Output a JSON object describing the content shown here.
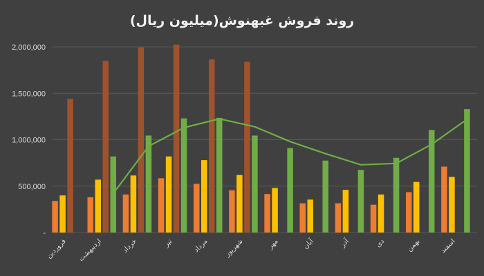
{
  "chart_data": {
    "type": "bar",
    "title": "روند فروش غبهنوش(میلیون ریال)",
    "categories": [
      "فروردین",
      "اردیبهشت",
      "خرداد",
      "تیر",
      "مرداد",
      "شهریور",
      "مهر",
      "آبان",
      "آذر",
      "دی",
      "بهمن",
      "اسفند"
    ],
    "series": [
      {
        "color": "#ed7d31",
        "values": [
          340000,
          380000,
          410000,
          585000,
          525000,
          455000,
          415000,
          315000,
          315000,
          300000,
          435000,
          710000
        ]
      },
      {
        "color": "#ffc000",
        "values": [
          400000,
          570000,
          615000,
          820000,
          780000,
          620000,
          480000,
          355000,
          460000,
          410000,
          545000,
          600000
        ]
      },
      {
        "color": "#a0522d",
        "values": [
          1440000,
          1850000,
          1995000,
          2025000,
          1865000,
          1840000,
          null,
          null,
          null,
          null,
          null,
          null
        ]
      },
      {
        "color": "#70ad47",
        "values": [
          null,
          820000,
          1045000,
          1230000,
          1235000,
          1045000,
          910000,
          775000,
          675000,
          805000,
          1105000,
          1330000
        ]
      }
    ],
    "trend_line": {
      "type": "line",
      "color": "#70ad47",
      "values": [
        null,
        420000,
        930000,
        1130000,
        1225000,
        1140000,
        980000,
        850000,
        730000,
        745000,
        950000,
        1220000
      ]
    },
    "y_ticks": [
      "2,000,000",
      "1,500,000",
      "1,000,000",
      "500,000",
      "-"
    ],
    "ylim": [
      0,
      2000000
    ],
    "grid": true
  }
}
